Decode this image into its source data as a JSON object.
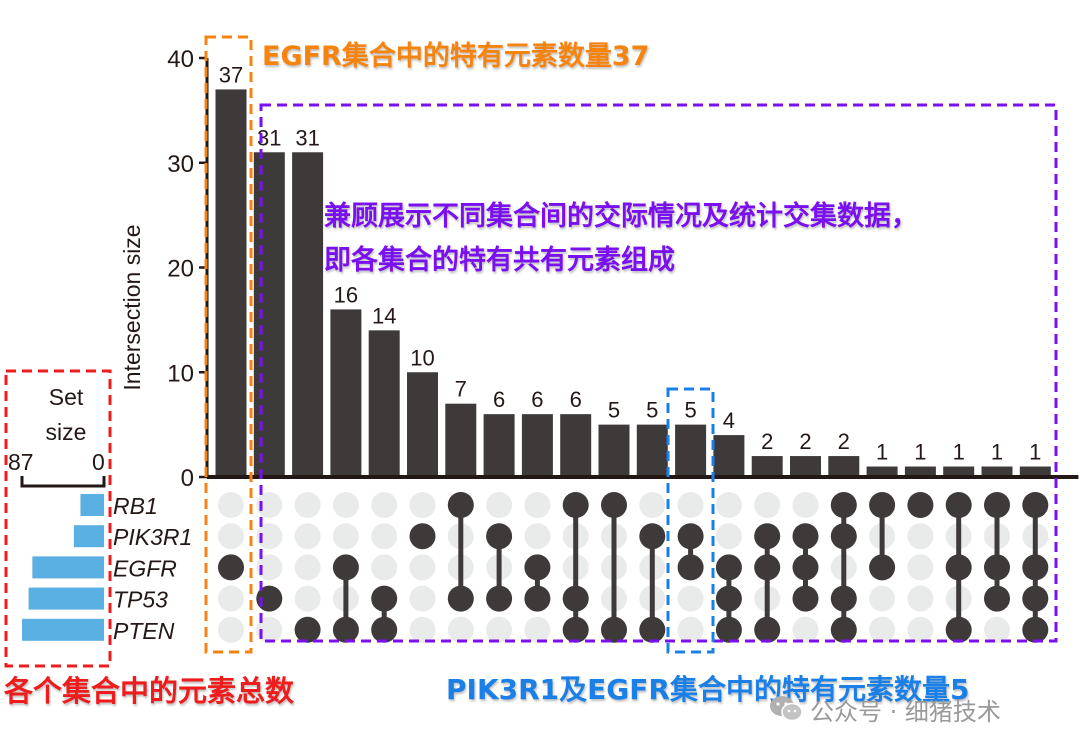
{
  "chart_data": {
    "type": "bar",
    "subtype": "upset",
    "ylabel": "Intersection size",
    "ylim": [
      0,
      40
    ],
    "yticks": [
      0,
      10,
      20,
      30,
      40
    ],
    "sets": [
      "RB1",
      "PIK3R1",
      "EGFR",
      "TP53",
      "PTEN"
    ],
    "set_size_label": [
      "Set",
      "size"
    ],
    "set_size_axis": {
      "left": "87",
      "right": "0"
    },
    "set_sizes": {
      "RB1": 25,
      "PIK3R1": 32,
      "EGFR": 76,
      "TP53": 80,
      "PTEN": 87
    },
    "intersections": [
      {
        "value": 37,
        "members": [
          "EGFR"
        ]
      },
      {
        "value": 31,
        "members": [
          "TP53"
        ]
      },
      {
        "value": 31,
        "members": [
          "PTEN"
        ]
      },
      {
        "value": 16,
        "members": [
          "EGFR",
          "PTEN"
        ]
      },
      {
        "value": 14,
        "members": [
          "TP53",
          "PTEN"
        ]
      },
      {
        "value": 10,
        "members": [
          "PIK3R1"
        ]
      },
      {
        "value": 7,
        "members": [
          "RB1",
          "TP53"
        ]
      },
      {
        "value": 6,
        "members": [
          "PIK3R1",
          "TP53"
        ]
      },
      {
        "value": 6,
        "members": [
          "EGFR",
          "TP53"
        ]
      },
      {
        "value": 6,
        "members": [
          "RB1",
          "TP53",
          "PTEN"
        ]
      },
      {
        "value": 5,
        "members": [
          "RB1",
          "PTEN"
        ]
      },
      {
        "value": 5,
        "members": [
          "PIK3R1",
          "PTEN"
        ]
      },
      {
        "value": 5,
        "members": [
          "PIK3R1",
          "EGFR"
        ]
      },
      {
        "value": 4,
        "members": [
          "EGFR",
          "TP53",
          "PTEN"
        ]
      },
      {
        "value": 2,
        "members": [
          "PIK3R1",
          "EGFR",
          "PTEN"
        ]
      },
      {
        "value": 2,
        "members": [
          "PIK3R1",
          "EGFR",
          "TP53"
        ]
      },
      {
        "value": 2,
        "members": [
          "RB1",
          "PIK3R1",
          "TP53",
          "PTEN"
        ]
      },
      {
        "value": 1,
        "members": [
          "RB1",
          "EGFR"
        ]
      },
      {
        "value": 1,
        "members": [
          "RB1"
        ]
      },
      {
        "value": 1,
        "members": [
          "RB1",
          "EGFR",
          "PTEN"
        ]
      },
      {
        "value": 1,
        "members": [
          "RB1",
          "EGFR",
          "TP53"
        ]
      },
      {
        "value": 1,
        "members": [
          "RB1",
          "EGFR",
          "TP53",
          "PTEN"
        ]
      }
    ],
    "colors": {
      "bar": "#3e3a3a",
      "dot_active": "#3e3a3a",
      "dot_inactive": "#e9eaea",
      "set_bar": "#5aafe3",
      "axis": "#231815"
    }
  },
  "annotations": {
    "egfr_unique": {
      "text": "EGFR集合中的特有元素数量37",
      "color": "#f7830f"
    },
    "overview": {
      "lines": [
        "兼顾展示不同集合间的交际情况及统计交集数据，",
        "即各集合的特有共有元素组成"
      ],
      "color": "#7a0ff0"
    },
    "set_total": {
      "text": "各个集合中的元素总数",
      "color": "#ee1c1c"
    },
    "pik3r1_egfr": {
      "text": "PIK3R1及EGFR集合中的特有元素数量5",
      "color": "#1a7fe6"
    }
  },
  "watermark": {
    "text": "公众号 · 细猪技术"
  }
}
